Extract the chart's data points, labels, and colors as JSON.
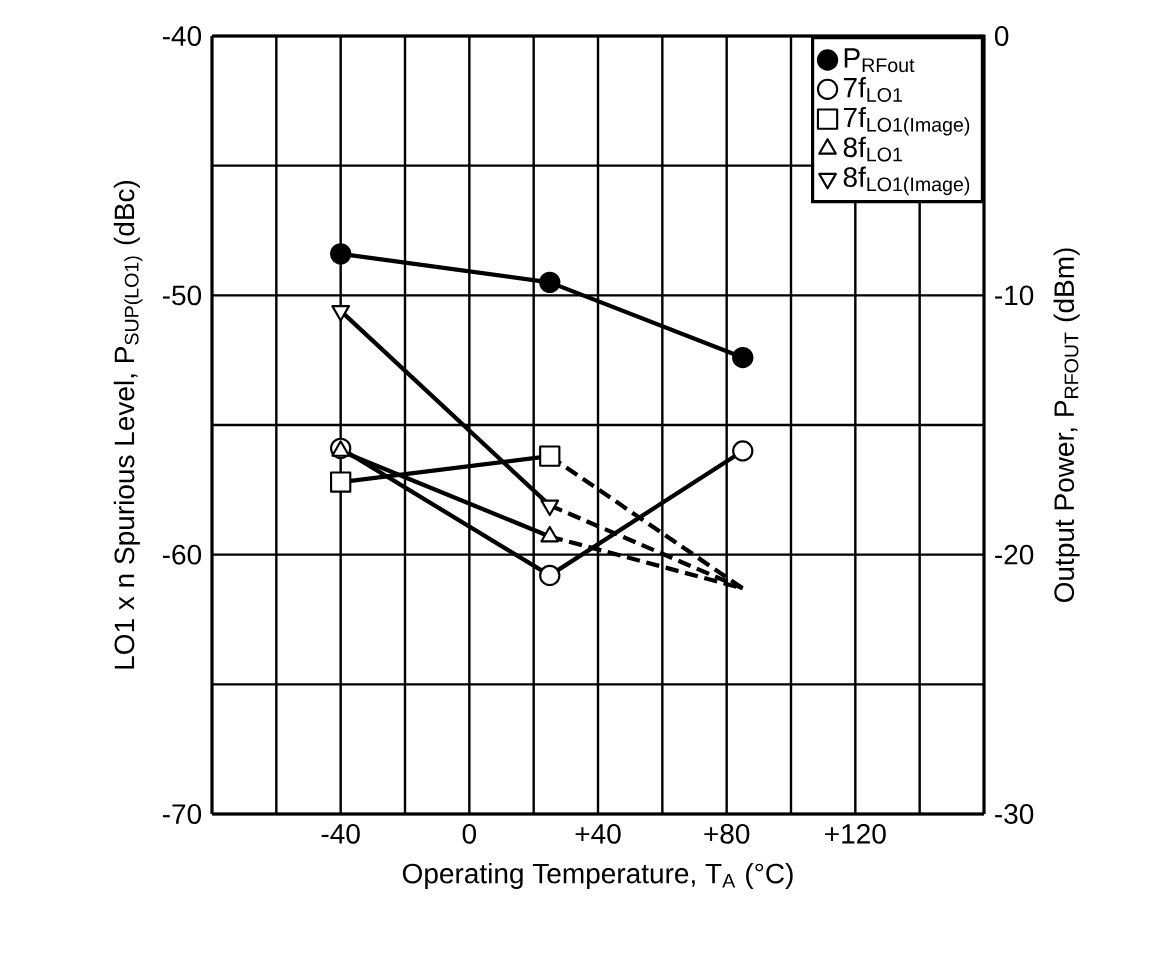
{
  "chart_data": {
    "type": "line",
    "xlabel": "Operating Temperature, T$_{A}$ (°C)",
    "ylabel": "LO1 x n Spurious Level, P$_{SUP(LO1)}$ (dBc)",
    "y2label": "Output Power, P$_{RFOUT}$ (dBm)",
    "xlim": [
      -80,
      160
    ],
    "ylim": [
      -70,
      -40
    ],
    "y2lim": [
      -30,
      0
    ],
    "xticks": [
      {
        "value": -60,
        "label": null
      },
      -40,
      {
        "value": -20,
        "label": null
      },
      0,
      {
        "value": 20,
        "label": null
      },
      {
        "value": 40,
        "label": "+40"
      },
      {
        "value": 60,
        "label": null
      },
      {
        "value": 80,
        "label": "+80"
      },
      {
        "value": 100,
        "label": null
      },
      {
        "value": 120,
        "label": "+120"
      },
      {
        "value": 140,
        "label": null
      }
    ],
    "yticks": [
      -70,
      {
        "value": -65,
        "label": null
      },
      -60,
      {
        "value": -55,
        "label": null
      },
      -50,
      {
        "value": -45,
        "label": null
      },
      -40
    ],
    "y2ticks": [
      -30,
      -20,
      -10,
      0
    ],
    "grid": true,
    "legend": "top right",
    "series": [
      {
        "name": "P$_{RFout}$",
        "color": "#000000",
        "axis": "y2",
        "marker": "circle",
        "line_style": "solid",
        "x": [
          -40,
          25,
          85
        ],
        "values": [
          -8.4,
          -9.5,
          -12.4
        ]
      },
      {
        "name": "7f$_{LO1}$",
        "color": "#000000",
        "marker": "circle",
        "line_style": "solid",
        "x": [
          -40,
          25,
          85
        ],
        "values": [
          -55.9,
          -60.8,
          -56.0
        ]
      },
      {
        "name": "7f$_{LO1(Image)}$",
        "color": "#000000",
        "marker": "square",
        "line_style": "solid",
        "x": [
          -40,
          25
        ],
        "values": [
          -57.2,
          -56.2
        ]
      },
      {
        "name": "8f$_{LO1}$",
        "color": "#000000",
        "marker": "triangle",
        "line_style": "solid",
        "x": [
          -40,
          25
        ],
        "values": [
          -56.0,
          -59.3
        ]
      },
      {
        "name": "8f$_{LO1(Image)}$",
        "color": "#000000",
        "marker": "triangle_down",
        "line_style": "solid",
        "x": [
          -40,
          25
        ],
        "values": [
          -50.6,
          -58.1
        ]
      },
      {
        "color": "#000000",
        "marker": "none",
        "line_style": "dashed",
        "x": [
          25,
          85
        ],
        "values": [
          -56.2,
          -61.3
        ]
      },
      {
        "color": "#000000",
        "marker": "none",
        "line_style": "dashed",
        "x": [
          25,
          85
        ],
        "values": [
          -59.3,
          -61.3
        ]
      },
      {
        "color": "#000000",
        "marker": "none",
        "line_style": "dashed",
        "x": [
          25,
          85
        ],
        "values": [
          -58.1,
          -61.3
        ]
      }
    ]
  }
}
